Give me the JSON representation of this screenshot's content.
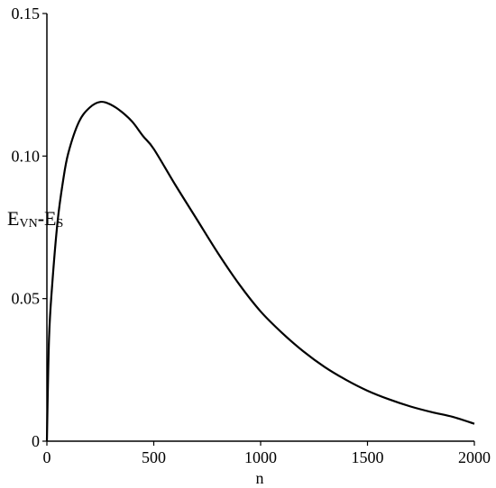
{
  "chart_data": {
    "type": "line",
    "title": "",
    "xlabel": "n",
    "ylabel": "Evn-Es",
    "ylabel_parts": {
      "main1": "E",
      "sub1": "VN",
      "dash": "-",
      "main2": "E",
      "sub2": "S"
    },
    "xlim": [
      0,
      2000
    ],
    "ylim": [
      0,
      0.15
    ],
    "x_ticks": [
      0,
      500,
      1000,
      1500,
      2000
    ],
    "x_tick_labels": [
      "0",
      "500",
      "1000",
      "1500",
      "2000"
    ],
    "y_ticks": [
      0,
      0.05,
      0.1,
      0.15
    ],
    "y_tick_labels": [
      "0",
      "0.05",
      "0.10",
      "0.15"
    ],
    "grid": false,
    "series": [
      {
        "color": "#000000",
        "x": [
          0,
          10,
          25,
          50,
          75,
          100,
          150,
          200,
          250,
          300,
          350,
          400,
          450,
          500,
          600,
          700,
          800,
          900,
          1000,
          1100,
          1200,
          1300,
          1400,
          1500,
          1600,
          1700,
          1800,
          1900,
          2000
        ],
        "y": [
          0.0,
          0.036,
          0.055,
          0.077,
          0.091,
          0.101,
          0.112,
          0.117,
          0.119,
          0.118,
          0.1155,
          0.112,
          0.107,
          0.1025,
          0.09,
          0.078,
          0.066,
          0.055,
          0.0455,
          0.038,
          0.0315,
          0.026,
          0.0215,
          0.0177,
          0.0147,
          0.0122,
          0.0102,
          0.0085,
          0.0061
        ]
      }
    ]
  }
}
